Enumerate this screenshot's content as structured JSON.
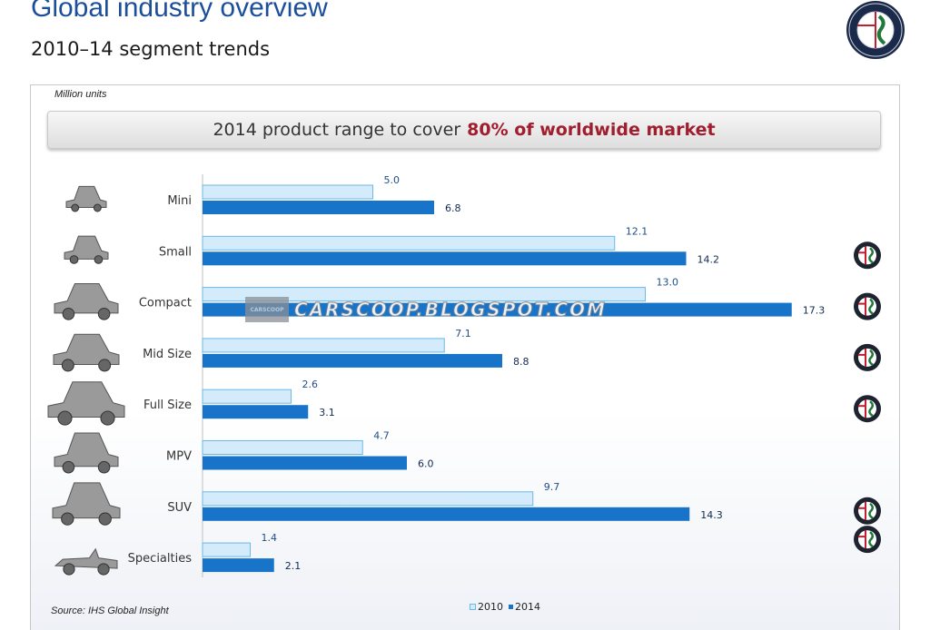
{
  "header": {
    "title": "Global industry overview",
    "subtitle": "2010–14 segment trends"
  },
  "logo_icon": "alfa-romeo-badge",
  "panel": {
    "unit_label": "Million units",
    "banner_text": "2014 product range to cover",
    "banner_highlight": "80% of worldwide market",
    "source": "Source: IHS Global Insight",
    "watermark_text": "CARSCOOP.BLOGSPOT.COM",
    "watermark_badge": "CARSCOOP"
  },
  "colors": {
    "bar_2010": "#d3ebfb",
    "bar_2010_border": "#6cb8e6",
    "bar_2014": "#1874c9",
    "label_2010": "#1f4f87",
    "label_2014": "#102a52",
    "title": "#1c4f9a",
    "highlight": "#a01e2e"
  },
  "chart_data": {
    "type": "bar",
    "orientation": "horizontal",
    "categories": [
      "Mini",
      "Small",
      "Compact",
      "Mid Size",
      "Full Size",
      "MPV",
      "SUV",
      "Specialties"
    ],
    "series": [
      {
        "name": "2010",
        "values": [
          5.0,
          12.1,
          13.0,
          7.1,
          2.6,
          4.7,
          9.7,
          1.4
        ]
      },
      {
        "name": "2014",
        "values": [
          6.8,
          14.2,
          17.3,
          8.8,
          3.1,
          6.0,
          14.3,
          2.1
        ]
      }
    ],
    "category_icons": [
      "mini-car-icon",
      "small-car-icon",
      "compact-car-icon",
      "mid-size-car-icon",
      "full-size-car-icon",
      "mpv-icon",
      "suv-icon",
      "convertible-icon"
    ],
    "alfa_badge_rows": [
      false,
      true,
      true,
      true,
      true,
      false,
      true,
      true
    ],
    "legend_placement": "bottom",
    "grid": false,
    "xlim": [
      0,
      20
    ]
  }
}
